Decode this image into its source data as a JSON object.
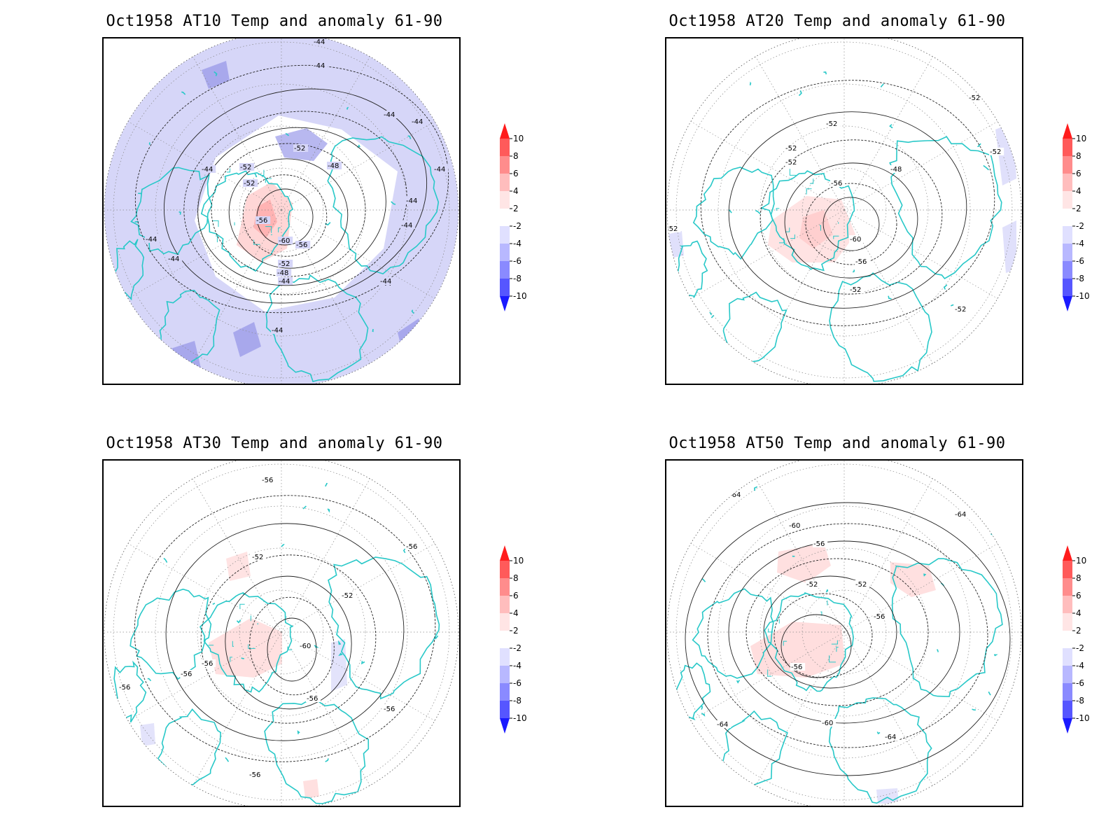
{
  "panels": [
    {
      "title": "Oct1958 AT10 Temp and anomaly 61-90",
      "background": "#d6d6f8",
      "contour_labels": [
        "-44",
        "-44",
        "-44",
        "-44",
        "-44",
        "-44",
        "-44",
        "-44",
        "-44",
        "-44",
        "-44",
        "-44",
        "-44",
        "-52",
        "-52",
        "-52",
        "-48",
        "-48",
        "-56",
        "-56",
        "-60",
        "-52",
        "-44"
      ]
    },
    {
      "title": "Oct1958 AT20 Temp and anomaly 61-90",
      "background": "#ffffff",
      "contour_labels": [
        "-52",
        "-52",
        "-52",
        "-52",
        "-52",
        "-48",
        "-56",
        "-60",
        "-56",
        "-52",
        "-52",
        "-52",
        "-52"
      ]
    },
    {
      "title": "Oct1958 AT30 Temp and anomaly 61-90",
      "background": "#ffffff",
      "contour_labels": [
        "-56",
        "-56",
        "-56",
        "-52",
        "-52",
        "-60",
        "-56",
        "-56",
        "-56",
        "-56",
        "-56",
        "-56"
      ]
    },
    {
      "title": "Oct1958 AT50 Temp and anomaly 61-90",
      "background": "#ffffff",
      "contour_labels": [
        "-64",
        "-64",
        "-60",
        "-56",
        "-52",
        "-52",
        "-56",
        "-56",
        "-60",
        "-64",
        "-64"
      ]
    }
  ],
  "colorbar": {
    "levels": [
      "10",
      "8",
      "6",
      "4",
      "2",
      "-2",
      "-4",
      "-6",
      "-8",
      "-10"
    ],
    "colors": [
      "#ff1c1c",
      "#ff5a5a",
      "#ff8c8c",
      "#ffbdbd",
      "#ffe5e5",
      "#ffffff",
      "#e0e0ff",
      "#b8b8ff",
      "#8a8aff",
      "#5656ff",
      "#1a1aff"
    ]
  },
  "colors": {
    "coastline": "#28c8c8",
    "contour": "#222222",
    "grid": "#888888"
  }
}
